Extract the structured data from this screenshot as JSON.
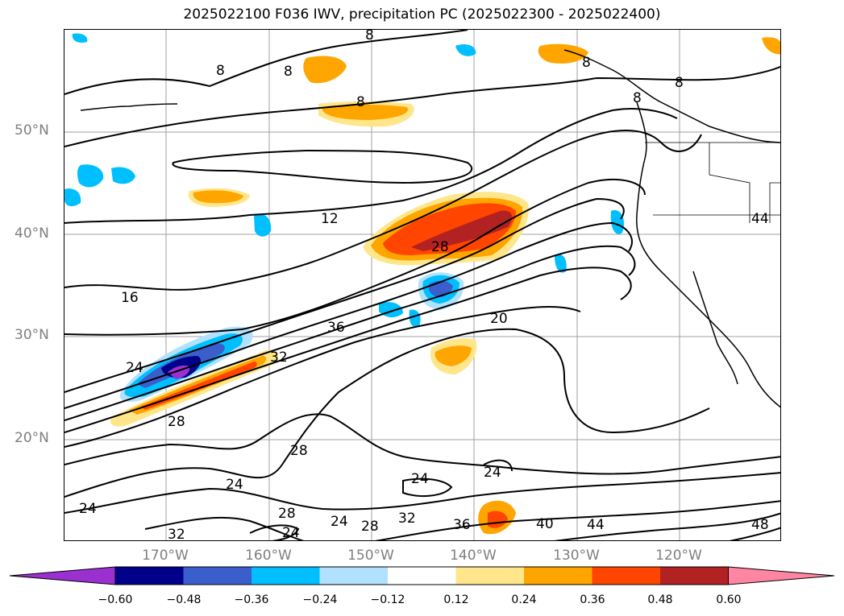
{
  "title": "2025022100 F036 IWV, precipitation PC (2025022300 - 2025022400)",
  "lat_labels": [
    "50°N",
    "40°N",
    "30°N",
    "20°N"
  ],
  "lon_labels": [
    "170°W",
    "160°W",
    "150°W",
    "140°W",
    "130°W",
    "120°W"
  ],
  "contour_labels": [
    "8",
    "8",
    "8",
    "8",
    "8",
    "8",
    "8",
    "12",
    "16",
    "20",
    "24",
    "24",
    "24",
    "24",
    "24",
    "24",
    "24",
    "28",
    "28",
    "28",
    "28",
    "28",
    "32",
    "32",
    "32",
    "36",
    "36",
    "40",
    "44",
    "44",
    "48"
  ],
  "colorbar": {
    "ticks": [
      "−0.60",
      "−0.48",
      "−0.36",
      "−0.24",
      "−0.12",
      "0.12",
      "0.24",
      "0.36",
      "0.48",
      "0.60"
    ],
    "colors": [
      "#9b30d0",
      "#00008b",
      "#3a5fcd",
      "#00bfff",
      "#b0e2ff",
      "#ffffff",
      "#ffe68a",
      "#ffa500",
      "#ff4500",
      "#b22222",
      "#ff85a2"
    ]
  },
  "colors": {
    "grid": "#a0a0a0",
    "contour": "#000000",
    "axis_label": "#7f7f7f"
  }
}
